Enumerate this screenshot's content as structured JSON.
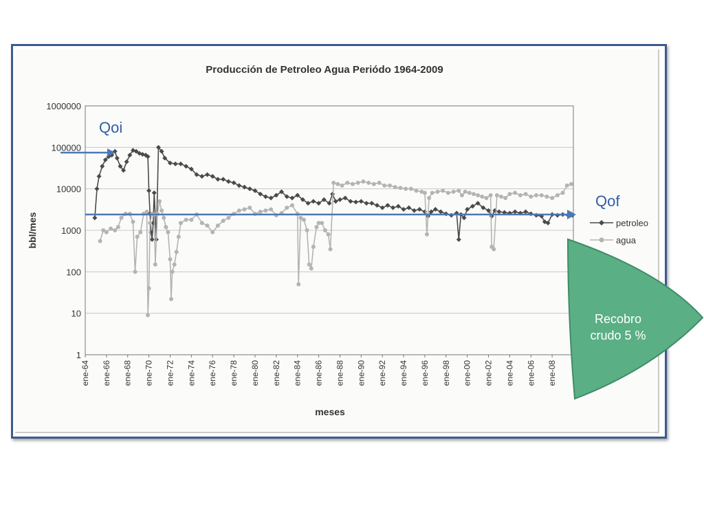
{
  "chart_data": {
    "type": "line",
    "title": "Producción de Petroleo Agua Periódo 1964-2009",
    "xlabel": "meses",
    "ylabel": "bbl/mes",
    "y_scale": "log",
    "ylim": [
      1,
      1000000
    ],
    "xlim": [
      1964,
      2010
    ],
    "grid": true,
    "legend": "right",
    "y_ticks": [
      "1",
      "10",
      "100",
      "1000",
      "10000",
      "100000",
      "1000000"
    ],
    "x_ticks": [
      "ene-64",
      "ene-66",
      "ene-68",
      "ene-70",
      "ene-72",
      "ene-74",
      "ene-76",
      "ene-78",
      "ene-80",
      "ene-82",
      "ene-84",
      "ene-86",
      "ene-88",
      "ene-90",
      "ene-92",
      "ene-94",
      "ene-96",
      "ene-98",
      "ene-00",
      "ene-02",
      "ene-04",
      "ene-06",
      "ene-08"
    ],
    "series": [
      {
        "name": "petroleo",
        "color": "#4a4a4a",
        "marker": "diamond",
        "points": [
          [
            1964.9,
            2000
          ],
          [
            1965.1,
            10000
          ],
          [
            1965.3,
            20000
          ],
          [
            1965.6,
            35000
          ],
          [
            1965.9,
            50000
          ],
          [
            1966.2,
            60000
          ],
          [
            1966.5,
            65000
          ],
          [
            1966.8,
            80000
          ],
          [
            1967.0,
            55000
          ],
          [
            1967.3,
            35000
          ],
          [
            1967.6,
            28000
          ],
          [
            1967.9,
            45000
          ],
          [
            1968.2,
            65000
          ],
          [
            1968.5,
            85000
          ],
          [
            1968.8,
            80000
          ],
          [
            1969.1,
            72000
          ],
          [
            1969.4,
            68000
          ],
          [
            1969.7,
            65000
          ],
          [
            1969.9,
            60000
          ],
          [
            1970.0,
            9000
          ],
          [
            1970.1,
            2500
          ],
          [
            1970.2,
            900
          ],
          [
            1970.3,
            600
          ],
          [
            1970.4,
            1500
          ],
          [
            1970.5,
            8000
          ],
          [
            1970.7,
            600
          ],
          [
            1970.9,
            100000
          ],
          [
            1971.2,
            80000
          ],
          [
            1971.5,
            55000
          ],
          [
            1972.0,
            42000
          ],
          [
            1972.5,
            40000
          ],
          [
            1973.0,
            40000
          ],
          [
            1973.5,
            35000
          ],
          [
            1974.0,
            30000
          ],
          [
            1974.5,
            22000
          ],
          [
            1975.0,
            20000
          ],
          [
            1975.5,
            22000
          ],
          [
            1976.0,
            20000
          ],
          [
            1976.5,
            17000
          ],
          [
            1977.0,
            17000
          ],
          [
            1977.5,
            15000
          ],
          [
            1978.0,
            14000
          ],
          [
            1978.5,
            12000
          ],
          [
            1979.0,
            11000
          ],
          [
            1979.5,
            10000
          ],
          [
            1980.0,
            9000
          ],
          [
            1980.5,
            7500
          ],
          [
            1981.0,
            6500
          ],
          [
            1981.5,
            6000
          ],
          [
            1982.0,
            7000
          ],
          [
            1982.5,
            8500
          ],
          [
            1983.0,
            6500
          ],
          [
            1983.5,
            6000
          ],
          [
            1984.0,
            7000
          ],
          [
            1984.5,
            5500
          ],
          [
            1985.0,
            4500
          ],
          [
            1985.5,
            5000
          ],
          [
            1986.0,
            4500
          ],
          [
            1986.5,
            5500
          ],
          [
            1987.0,
            4500
          ],
          [
            1987.3,
            7500
          ],
          [
            1987.6,
            5000
          ],
          [
            1988.0,
            5500
          ],
          [
            1988.5,
            6000
          ],
          [
            1989.0,
            5000
          ],
          [
            1989.5,
            4800
          ],
          [
            1990.0,
            5000
          ],
          [
            1990.5,
            4500
          ],
          [
            1991.0,
            4500
          ],
          [
            1991.5,
            4000
          ],
          [
            1992.0,
            3500
          ],
          [
            1992.5,
            4000
          ],
          [
            1993.0,
            3500
          ],
          [
            1993.5,
            3800
          ],
          [
            1994.0,
            3200
          ],
          [
            1994.5,
            3500
          ],
          [
            1995.0,
            3000
          ],
          [
            1995.5,
            3200
          ],
          [
            1996.0,
            2800
          ],
          [
            1996.3,
            2200
          ],
          [
            1996.6,
            2800
          ],
          [
            1997.0,
            3200
          ],
          [
            1997.5,
            2800
          ],
          [
            1998.0,
            2500
          ],
          [
            1998.5,
            2300
          ],
          [
            1999.0,
            2600
          ],
          [
            1999.2,
            600
          ],
          [
            1999.4,
            2400
          ],
          [
            1999.7,
            2000
          ],
          [
            2000.0,
            3200
          ],
          [
            2000.5,
            3800
          ],
          [
            2001.0,
            4500
          ],
          [
            2001.5,
            3500
          ],
          [
            2002.0,
            3000
          ],
          [
            2002.3,
            2200
          ],
          [
            2002.6,
            3000
          ],
          [
            2003.0,
            2800
          ],
          [
            2003.5,
            2700
          ],
          [
            2004.0,
            2600
          ],
          [
            2004.5,
            2800
          ],
          [
            2005.0,
            2600
          ],
          [
            2005.5,
            2800
          ],
          [
            2006.0,
            2500
          ],
          [
            2006.5,
            2300
          ],
          [
            2007.0,
            2200
          ],
          [
            2007.3,
            1600
          ],
          [
            2007.6,
            1500
          ],
          [
            2008.0,
            2400
          ],
          [
            2008.5,
            2300
          ],
          [
            2009.0,
            2400
          ],
          [
            2009.5,
            2300
          ],
          [
            2009.9,
            2300
          ]
        ]
      },
      {
        "name": "agua",
        "color": "#b4b4b4",
        "marker": "circle",
        "points": [
          [
            1965.4,
            550
          ],
          [
            1965.7,
            1000
          ],
          [
            1966.0,
            900
          ],
          [
            1966.4,
            1100
          ],
          [
            1966.8,
            1000
          ],
          [
            1967.1,
            1200
          ],
          [
            1967.4,
            2000
          ],
          [
            1967.8,
            2500
          ],
          [
            1968.2,
            2500
          ],
          [
            1968.5,
            1600
          ],
          [
            1968.7,
            100
          ],
          [
            1968.9,
            700
          ],
          [
            1969.2,
            900
          ],
          [
            1969.5,
            2500
          ],
          [
            1969.8,
            2800
          ],
          [
            1969.9,
            9
          ],
          [
            1970.0,
            40
          ],
          [
            1970.1,
            1500
          ],
          [
            1970.3,
            2500
          ],
          [
            1970.5,
            2400
          ],
          [
            1970.6,
            150
          ],
          [
            1970.8,
            2500
          ],
          [
            1971.0,
            5000
          ],
          [
            1971.2,
            3000
          ],
          [
            1971.4,
            2000
          ],
          [
            1971.6,
            1200
          ],
          [
            1971.8,
            900
          ],
          [
            1972.0,
            200
          ],
          [
            1972.1,
            22
          ],
          [
            1972.2,
            100
          ],
          [
            1972.4,
            150
          ],
          [
            1972.6,
            300
          ],
          [
            1972.8,
            700
          ],
          [
            1973.0,
            1500
          ],
          [
            1973.5,
            1800
          ],
          [
            1974.0,
            1800
          ],
          [
            1974.5,
            2400
          ],
          [
            1975.0,
            1500
          ],
          [
            1975.5,
            1300
          ],
          [
            1976.0,
            900
          ],
          [
            1976.5,
            1300
          ],
          [
            1977.0,
            1700
          ],
          [
            1977.5,
            2000
          ],
          [
            1978.0,
            2500
          ],
          [
            1978.5,
            3000
          ],
          [
            1979.0,
            3200
          ],
          [
            1979.5,
            3500
          ],
          [
            1980.0,
            2500
          ],
          [
            1980.5,
            2800
          ],
          [
            1981.0,
            3000
          ],
          [
            1981.5,
            3200
          ],
          [
            1982.0,
            2300
          ],
          [
            1982.5,
            2600
          ],
          [
            1983.0,
            3500
          ],
          [
            1983.5,
            4000
          ],
          [
            1984.0,
            2500
          ],
          [
            1984.1,
            50
          ],
          [
            1984.3,
            2000
          ],
          [
            1984.6,
            1800
          ],
          [
            1984.9,
            1000
          ],
          [
            1985.1,
            150
          ],
          [
            1985.3,
            120
          ],
          [
            1985.5,
            400
          ],
          [
            1985.8,
            1200
          ],
          [
            1986.0,
            1500
          ],
          [
            1986.3,
            1500
          ],
          [
            1986.6,
            1000
          ],
          [
            1986.9,
            800
          ],
          [
            1987.1,
            350
          ],
          [
            1987.4,
            14000
          ],
          [
            1987.8,
            13000
          ],
          [
            1988.2,
            12000
          ],
          [
            1988.7,
            14000
          ],
          [
            1989.2,
            13000
          ],
          [
            1989.7,
            14000
          ],
          [
            1990.2,
            15000
          ],
          [
            1990.7,
            14000
          ],
          [
            1991.2,
            13000
          ],
          [
            1991.7,
            14000
          ],
          [
            1992.2,
            12000
          ],
          [
            1992.7,
            12000
          ],
          [
            1993.2,
            11000
          ],
          [
            1993.7,
            10500
          ],
          [
            1994.2,
            10000
          ],
          [
            1994.7,
            10000
          ],
          [
            1995.2,
            9000
          ],
          [
            1995.7,
            8500
          ],
          [
            1996.0,
            8000
          ],
          [
            1996.2,
            800
          ],
          [
            1996.4,
            6000
          ],
          [
            1996.7,
            8000
          ],
          [
            1997.2,
            8500
          ],
          [
            1997.7,
            9000
          ],
          [
            1998.2,
            8000
          ],
          [
            1998.7,
            8500
          ],
          [
            1999.2,
            9000
          ],
          [
            1999.5,
            7000
          ],
          [
            1999.8,
            8500
          ],
          [
            2000.2,
            8000
          ],
          [
            2000.6,
            7500
          ],
          [
            2001.0,
            7000
          ],
          [
            2001.4,
            6500
          ],
          [
            2001.8,
            6000
          ],
          [
            2002.2,
            7000
          ],
          [
            2002.3,
            400
          ],
          [
            2002.5,
            350
          ],
          [
            2002.8,
            7000
          ],
          [
            2003.2,
            6500
          ],
          [
            2003.6,
            6000
          ],
          [
            2004.0,
            7500
          ],
          [
            2004.5,
            8000
          ],
          [
            2005.0,
            7000
          ],
          [
            2005.5,
            7500
          ],
          [
            2006.0,
            6500
          ],
          [
            2006.5,
            7000
          ],
          [
            2007.0,
            7000
          ],
          [
            2007.5,
            6500
          ],
          [
            2008.0,
            6000
          ],
          [
            2008.5,
            7000
          ],
          [
            2009.0,
            8000
          ],
          [
            2009.4,
            12000
          ],
          [
            2009.8,
            13000
          ]
        ]
      }
    ]
  },
  "annotations": {
    "qoi": "Qoi",
    "qof": "Qof",
    "arrow_color": "#4a78b5"
  },
  "callout": {
    "text_line1": "Recobro",
    "text_line2": "crudo 5 %",
    "fill": "#5aaf85",
    "stroke": "#3f8c66"
  }
}
